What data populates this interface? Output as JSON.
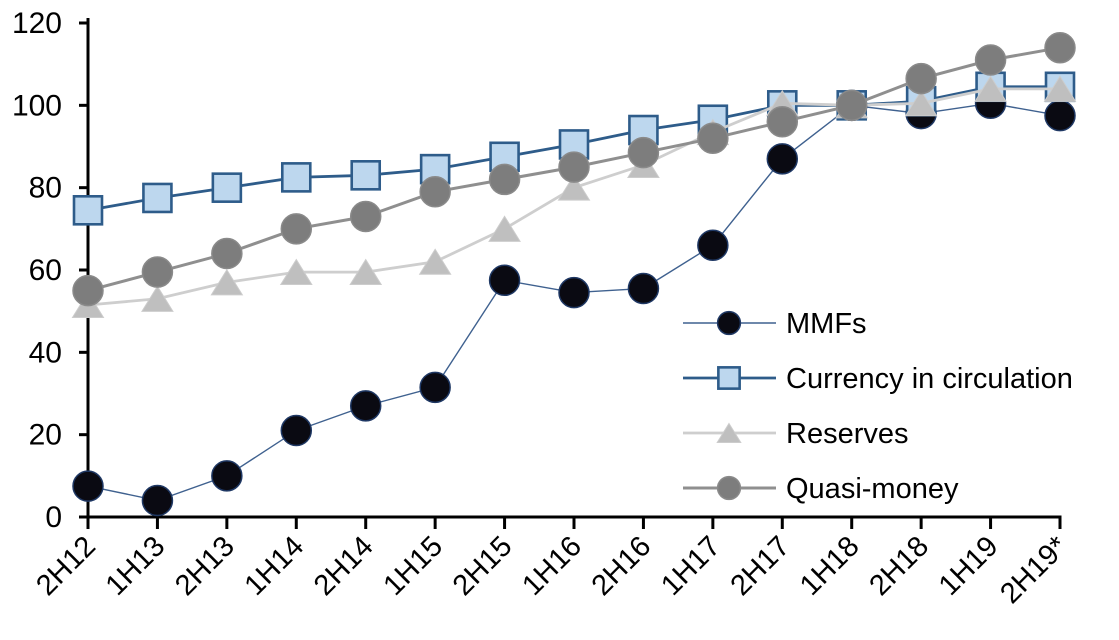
{
  "chart_data": {
    "type": "line",
    "title": "",
    "xlabel": "",
    "ylabel": "",
    "categories": [
      "2H12",
      "1H13",
      "2H13",
      "1H14",
      "2H14",
      "1H15",
      "2H15",
      "1H16",
      "2H16",
      "1H17",
      "2H17",
      "1H18",
      "2H18",
      "1H19",
      "2H19*"
    ],
    "y_ticks": [
      0,
      20,
      40,
      60,
      80,
      100,
      120
    ],
    "ylim": [
      0,
      120
    ],
    "grid": false,
    "legend_position": "inside-right",
    "axis_color": "#000000",
    "series": [
      {
        "name": "MMFs",
        "marker": "circle",
        "marker_fill": "#0a0a12",
        "marker_stroke": "#1f3864",
        "line_color": "#3f618f",
        "line_width": 1.4,
        "values": [
          7.5,
          4,
          10,
          21,
          27,
          31.5,
          57.5,
          54.5,
          55.5,
          66,
          87,
          100,
          98,
          100.5,
          97.5
        ]
      },
      {
        "name": "Currency in circulation",
        "marker": "square",
        "marker_fill": "#bdd7ee",
        "marker_stroke": "#2e5c8a",
        "line_color": "#2e5c8a",
        "line_width": 2.8,
        "values": [
          74.5,
          77.5,
          80,
          82.5,
          83,
          84.5,
          87.5,
          90.5,
          94,
          96.5,
          100,
          100,
          101,
          104.5,
          104.5
        ]
      },
      {
        "name": "Reserves",
        "marker": "triangle",
        "marker_fill": "#bfbfbf",
        "marker_stroke": "#cccccc",
        "line_color": "#cecece",
        "line_width": 2.8,
        "values": [
          51.5,
          53,
          57,
          59.5,
          59.5,
          62,
          70,
          80,
          85.5,
          93.5,
          100.5,
          100,
          100.5,
          104,
          104
        ]
      },
      {
        "name": "Quasi-money",
        "marker": "circle",
        "marker_fill": "#7d7d7d",
        "marker_stroke": "#8a8a8a",
        "line_color": "#8f8f8f",
        "line_width": 3,
        "values": [
          55,
          59.5,
          64,
          70,
          73,
          79,
          82,
          85,
          88.5,
          92,
          96,
          100,
          106.5,
          111,
          114
        ]
      }
    ]
  }
}
